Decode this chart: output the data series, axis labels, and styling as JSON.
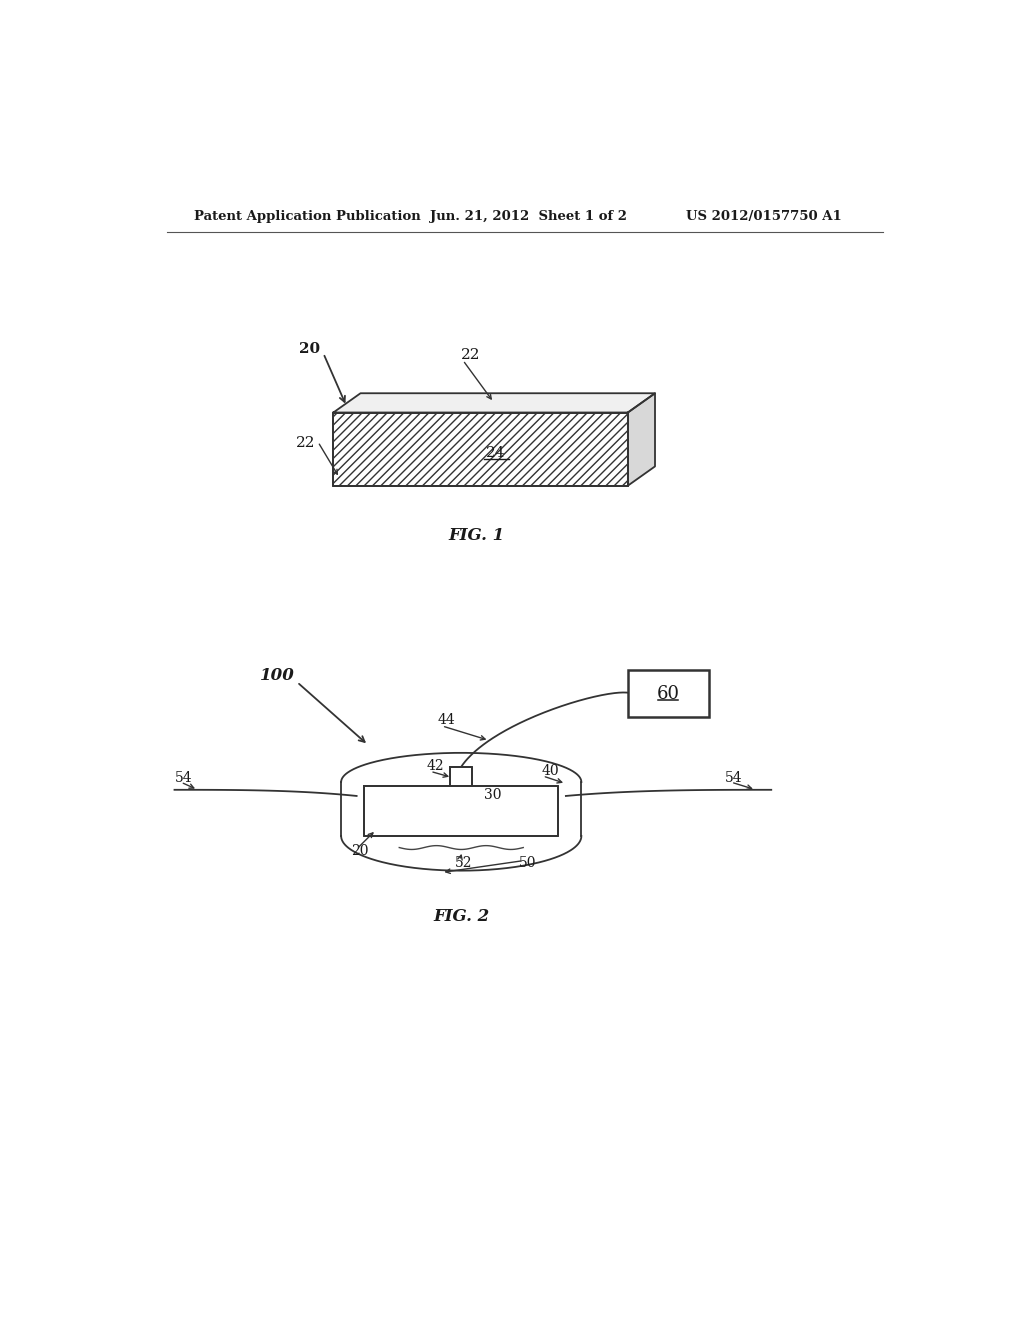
{
  "bg_color": "#ffffff",
  "header_left": "Patent Application Publication",
  "header_mid": "Jun. 21, 2012  Sheet 1 of 2",
  "header_right": "US 2012/0157750 A1",
  "fig1_label": "FIG. 1",
  "fig2_label": "FIG. 2",
  "label_20_fig1": "20",
  "label_22_top": "22",
  "label_22_left": "22",
  "label_24": "24",
  "label_100": "100",
  "label_60": "60",
  "label_44": "44",
  "label_42": "42",
  "label_40": "40",
  "label_30": "30",
  "label_54_left": "54",
  "label_54_right": "54",
  "label_20_fig2": "20",
  "label_52": "52",
  "label_50": "50"
}
